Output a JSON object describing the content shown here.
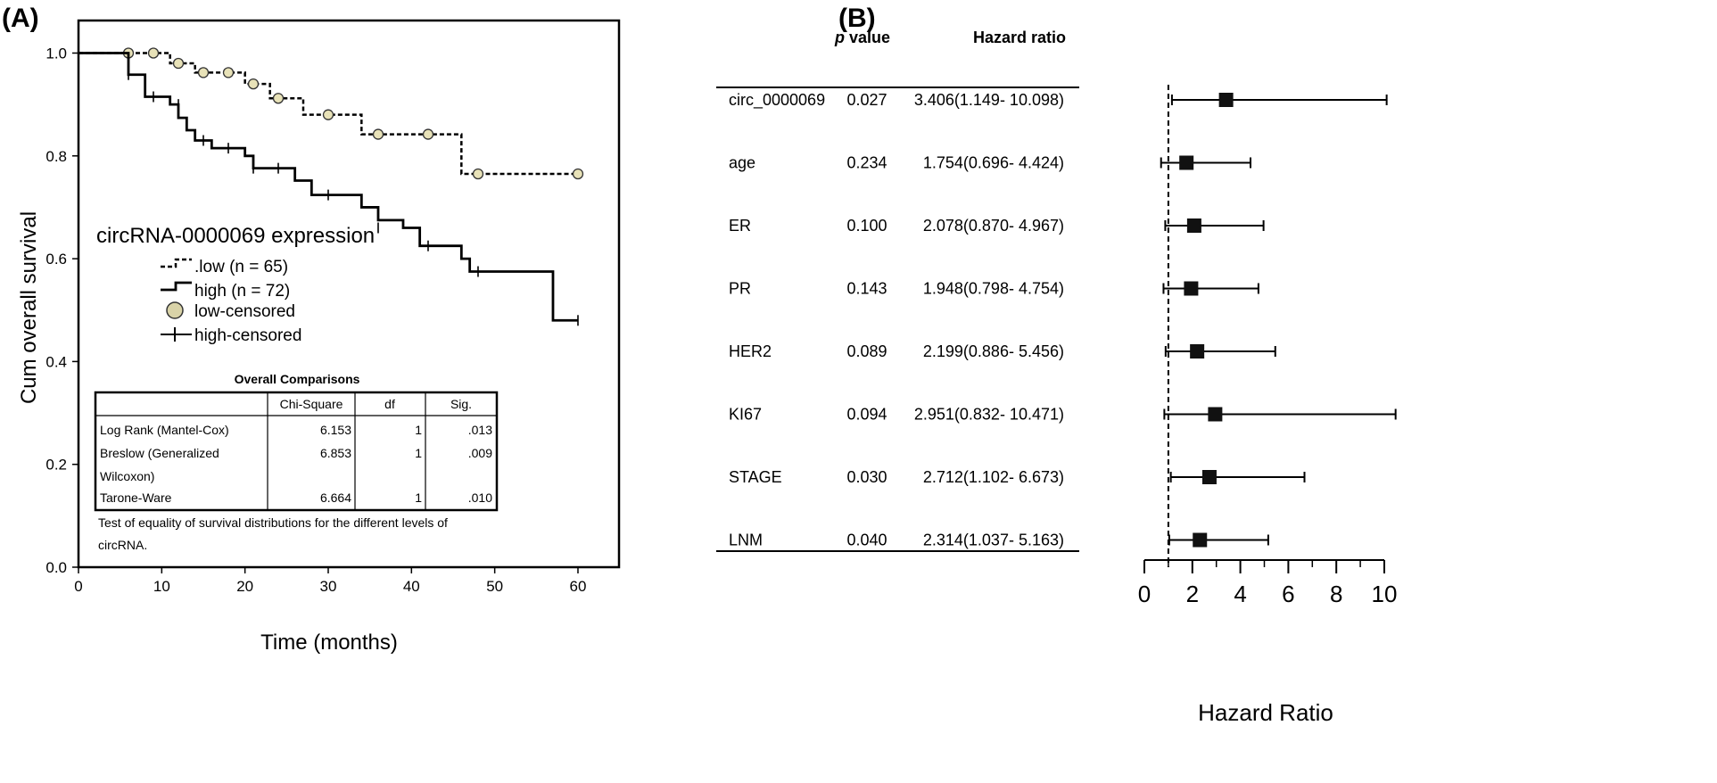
{
  "panel_a_label": "(A)",
  "panel_b_label": "(B)",
  "chart_data": [
    {
      "type": "line",
      "panel": "A",
      "title": "",
      "xlabel": "Time (months)",
      "ylabel": "Cum overall survival",
      "xlim": [
        0,
        65
      ],
      "ylim": [
        0,
        1.05
      ],
      "xticks": [
        "0",
        "10",
        "20",
        "30",
        "40",
        "50",
        "60"
      ],
      "yticks": [
        "0.0",
        "0.2",
        "0.4",
        "0.6",
        "0.8",
        "1.0"
      ],
      "legend_title": "circRNA-0000069 expression",
      "legend": [
        "low (n = 65)",
        "high (n = 72)",
        "low-censored",
        "high-censored"
      ],
      "series": [
        {
          "name": "low (n = 65)",
          "style": "dashed",
          "steps": [
            [
              0,
              1.0
            ],
            [
              11,
              0.98
            ],
            [
              14,
              0.962
            ],
            [
              20,
              0.94
            ],
            [
              23,
              0.912
            ],
            [
              27,
              0.88
            ],
            [
              34,
              0.842
            ],
            [
              46,
              0.765
            ],
            [
              60,
              0.765
            ]
          ],
          "censored": [
            [
              6,
              1.0
            ],
            [
              9,
              1.0
            ],
            [
              12,
              0.98
            ],
            [
              15,
              0.962
            ],
            [
              18,
              0.962
            ],
            [
              21,
              0.94
            ],
            [
              24,
              0.912
            ],
            [
              30,
              0.88
            ],
            [
              36,
              0.842
            ],
            [
              42,
              0.842
            ],
            [
              48,
              0.765
            ],
            [
              60,
              0.765
            ]
          ]
        },
        {
          "name": "high (n = 72)",
          "style": "solid",
          "steps": [
            [
              0,
              1.0
            ],
            [
              6,
              0.958
            ],
            [
              8,
              0.915
            ],
            [
              11,
              0.9
            ],
            [
              12,
              0.874
            ],
            [
              13,
              0.85
            ],
            [
              14,
              0.83
            ],
            [
              16,
              0.815
            ],
            [
              20,
              0.8
            ],
            [
              21,
              0.776
            ],
            [
              26,
              0.752
            ],
            [
              28,
              0.724
            ],
            [
              34,
              0.7
            ],
            [
              36,
              0.675
            ],
            [
              39,
              0.66
            ],
            [
              41,
              0.625
            ],
            [
              46,
              0.6
            ],
            [
              47,
              0.575
            ],
            [
              57,
              0.48
            ],
            [
              60,
              0.48
            ]
          ],
          "censored": [
            [
              6,
              0.958
            ],
            [
              9,
              0.915
            ],
            [
              12,
              0.9
            ],
            [
              15,
              0.83
            ],
            [
              18,
              0.815
            ],
            [
              21,
              0.776
            ],
            [
              24,
              0.776
            ],
            [
              30,
              0.724
            ],
            [
              36,
              0.66
            ],
            [
              42,
              0.625
            ],
            [
              48,
              0.575
            ],
            [
              60,
              0.48
            ]
          ]
        }
      ],
      "comparison_table": {
        "title": "Overall Comparisons",
        "columns": [
          "",
          "Chi-Square",
          "df",
          "Sig."
        ],
        "rows": [
          {
            "label_lines": [
              "Log Rank (Mantel-Cox)"
            ],
            "chi": "6.153",
            "df": "1",
            "sig": ".013"
          },
          {
            "label_lines": [
              "Breslow (Generalized",
              "Wilcoxon)"
            ],
            "chi": "6.853",
            "df": "1",
            "sig": ".009"
          },
          {
            "label_lines": [
              "Tarone-Ware"
            ],
            "chi": "6.664",
            "df": "1",
            "sig": ".010"
          }
        ],
        "footnote_lines": [
          "Test of equality of survival distributions for the different levels of",
          "circRNA."
        ]
      }
    },
    {
      "type": "forest",
      "panel": "B",
      "xlabel": "Hazard Ratio",
      "xlim": [
        0,
        10
      ],
      "xticks": [
        "0",
        "2",
        "4",
        "6",
        "8",
        "10"
      ],
      "reference_line": 1,
      "headers": {
        "p_italic": "p",
        "p_rest": " value",
        "hr": "Hazard ratio"
      },
      "rows": [
        {
          "name": "circ_0000069",
          "p": "0.027",
          "hr_text": "3.406(1.149- 10.098)",
          "hr": 3.406,
          "lo": 1.149,
          "hi": 10.098
        },
        {
          "name": "age",
          "p": "0.234",
          "hr_text": "1.754(0.696- 4.424)",
          "hr": 1.754,
          "lo": 0.696,
          "hi": 4.424
        },
        {
          "name": "ER",
          "p": "0.100",
          "hr_text": "2.078(0.870- 4.967)",
          "hr": 2.078,
          "lo": 0.87,
          "hi": 4.967
        },
        {
          "name": "PR",
          "p": "0.143",
          "hr_text": "1.948(0.798- 4.754)",
          "hr": 1.948,
          "lo": 0.798,
          "hi": 4.754
        },
        {
          "name": "HER2",
          "p": "0.089",
          "hr_text": "2.199(0.886- 5.456)",
          "hr": 2.199,
          "lo": 0.886,
          "hi": 5.456
        },
        {
          "name": "KI67",
          "p": "0.094",
          "hr_text": "2.951(0.832- 10.471)",
          "hr": 2.951,
          "lo": 0.832,
          "hi": 10.471
        },
        {
          "name": "STAGE",
          "p": "0.030",
          "hr_text": "2.712(1.102- 6.673)",
          "hr": 2.712,
          "lo": 1.102,
          "hi": 6.673
        },
        {
          "name": "LNM",
          "p": "0.040",
          "hr_text": "2.314(1.037- 5.163)",
          "hr": 2.314,
          "lo": 1.037,
          "hi": 5.163
        }
      ]
    }
  ]
}
